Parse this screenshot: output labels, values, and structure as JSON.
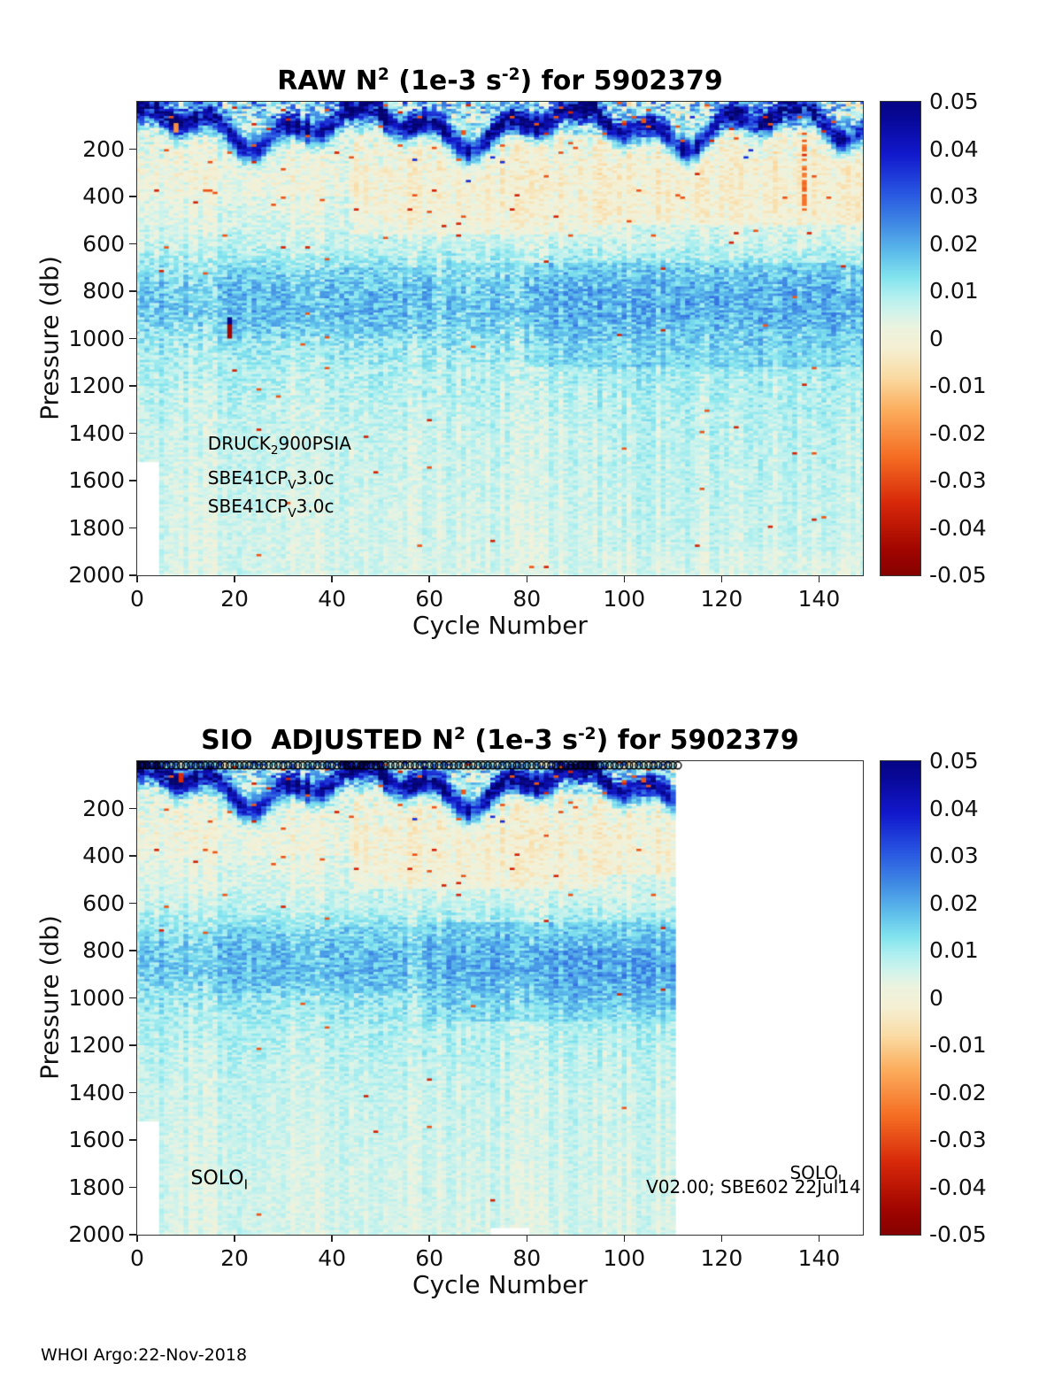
{
  "page": {
    "footer": "WHOI Argo:22-Nov-2018",
    "background": "#ffffff"
  },
  "colormap": {
    "stops": [
      [
        -0.055,
        110,
        0,
        0
      ],
      [
        -0.045,
        160,
        5,
        0
      ],
      [
        -0.035,
        215,
        40,
        10
      ],
      [
        -0.025,
        245,
        110,
        35
      ],
      [
        -0.015,
        252,
        175,
        95
      ],
      [
        -0.008,
        250,
        220,
        165
      ],
      [
        -0.002,
        245,
        240,
        212
      ],
      [
        0.002,
        238,
        243,
        222
      ],
      [
        0.005,
        216,
        244,
        234
      ],
      [
        0.009,
        178,
        240,
        240
      ],
      [
        0.013,
        130,
        228,
        238
      ],
      [
        0.018,
        95,
        190,
        235
      ],
      [
        0.024,
        65,
        140,
        228
      ],
      [
        0.031,
        40,
        85,
        225
      ],
      [
        0.039,
        18,
        25,
        205
      ],
      [
        0.047,
        8,
        8,
        150
      ],
      [
        0.055,
        3,
        3,
        110
      ]
    ]
  },
  "chart_data": [
    {
      "type": "heatmap",
      "title_parts": [
        {
          "t": "RAW N"
        },
        {
          "sup": "2"
        },
        {
          "t": " (1e-3 s"
        },
        {
          "sup": "-2"
        },
        {
          "t": ") for 5902379"
        }
      ],
      "xlabel": "Cycle Number",
      "ylabel": "Pressure (db)",
      "x_range": [
        0,
        149
      ],
      "y_range": [
        0,
        2000
      ],
      "x_ticks": [
        0,
        20,
        40,
        60,
        80,
        100,
        120,
        140
      ],
      "y_ticks": [
        200,
        400,
        600,
        800,
        1000,
        1200,
        1400,
        1600,
        1800,
        2000
      ],
      "value_range": [
        -0.05,
        0.05
      ],
      "colorbar_ticks": [
        "0.05",
        "0.04",
        "0.03",
        "0.02",
        "0.01",
        "0",
        "-0.01",
        "-0.02",
        "-0.03",
        "-0.04",
        "-0.05"
      ],
      "annotations": [
        {
          "c": 14.5,
          "p": 1450,
          "size": 20,
          "parts": [
            {
              "t": "DRUCK"
            },
            {
              "sub": "2"
            },
            {
              "t": "900PSIA"
            }
          ]
        },
        {
          "c": 14.5,
          "p": 1595,
          "size": 20,
          "parts": [
            {
              "t": "SBE41CP"
            },
            {
              "sub": "V"
            },
            {
              "t": "3.0c"
            }
          ]
        },
        {
          "c": 14.5,
          "p": 1715,
          "size": 20,
          "parts": [
            {
              "t": "SBE41CP"
            },
            {
              "sub": "V"
            },
            {
              "t": "3.0c"
            }
          ]
        }
      ],
      "field": {
        "seed": 101,
        "c_min": 0,
        "c_max": 149,
        "rows": 200,
        "base_profile": [
          [
            0,
            0.012
          ],
          [
            40,
            0.01
          ],
          [
            120,
            0.006
          ],
          [
            200,
            0.0045
          ],
          [
            300,
            0.003
          ],
          [
            450,
            0.003
          ],
          [
            600,
            0.006
          ],
          [
            700,
            0.011
          ],
          [
            800,
            0.015
          ],
          [
            900,
            0.015
          ],
          [
            1000,
            0.011
          ],
          [
            1150,
            0.008
          ],
          [
            1400,
            0.006
          ],
          [
            1700,
            0.005
          ],
          [
            2000,
            0.0045
          ]
        ],
        "noise_profile": [
          [
            0,
            0.02
          ],
          [
            60,
            0.015
          ],
          [
            150,
            0.008
          ],
          [
            300,
            0.005
          ],
          [
            600,
            0.0045
          ],
          [
            750,
            0.007
          ],
          [
            950,
            0.007
          ],
          [
            1100,
            0.005
          ],
          [
            1500,
            0.0035
          ],
          [
            2000,
            0.003
          ]
        ],
        "speck_profile": [
          [
            0,
            0.03
          ],
          [
            80,
            0.02
          ],
          [
            200,
            0.012
          ],
          [
            400,
            0.008
          ],
          [
            600,
            0.003
          ],
          [
            2000,
            0.0015
          ]
        ],
        "speck_neg_frac": 0.6,
        "col_noise": 0.0025,
        "streak": {
          "base": 100,
          "a1": 65,
          "p1": 6.8,
          "ph1": 4.14,
          "a2": 45,
          "p2": 2.4,
          "ph2": 4.5,
          "amp": 0.042,
          "sigma": 36
        },
        "patches": [
          {
            "c": [
              45,
              95
            ],
            "p": [
              140,
              560
            ],
            "dv": -0.0045
          },
          {
            "c": [
              95,
              149
            ],
            "p": [
              120,
              520
            ],
            "dv": -0.005
          },
          {
            "c": [
              0,
              45
            ],
            "p": [
              140,
              400
            ],
            "dv": -0.002
          },
          {
            "c": [
              80,
              149
            ],
            "p": [
              680,
              1120
            ],
            "dv": 0.004
          },
          {
            "c": [
              18,
              60
            ],
            "p": [
              700,
              1000
            ],
            "dv": 0.002
          },
          {
            "c": [
              95,
              149
            ],
            "p": [
              1100,
              1900
            ],
            "dv": 0.0015
          }
        ],
        "vstreaks": [
          {
            "c": 137,
            "w": 0.7,
            "p": [
              110,
              470
            ],
            "v": -0.028,
            "prob": 0.55
          }
        ],
        "specks": [
          {
            "c": 19,
            "p": [
              935,
              995
            ],
            "v": -0.045
          },
          {
            "c": 19,
            "p": [
              915,
              935
            ],
            "v": 0.05
          },
          {
            "c": 8,
            "p": [
              90,
              130
            ],
            "v": -0.02
          }
        ],
        "missing": [
          {
            "c": [
              0,
              4.5
            ],
            "p": [
              1520,
              2000
            ]
          }
        ]
      },
      "markers": null
    },
    {
      "type": "heatmap",
      "title_parts": [
        {
          "t": "SIO  ADJUSTED N"
        },
        {
          "sup": "2"
        },
        {
          "t": " (1e-3 s"
        },
        {
          "sup": "-2"
        },
        {
          "t": ") for 5902379"
        }
      ],
      "xlabel": "Cycle Number",
      "ylabel": "Pressure (db)",
      "x_range": [
        0,
        149
      ],
      "y_range": [
        0,
        2000
      ],
      "x_ticks": [
        0,
        20,
        40,
        60,
        80,
        100,
        120,
        140
      ],
      "y_ticks": [
        200,
        400,
        600,
        800,
        1000,
        1200,
        1400,
        1600,
        1800,
        2000
      ],
      "value_range": [
        -0.05,
        0.05
      ],
      "colorbar_ticks": [
        "0.05",
        "0.04",
        "0.03",
        "0.02",
        "0.01",
        "0",
        "-0.01",
        "-0.02",
        "-0.03",
        "-0.04",
        "-0.05"
      ],
      "annotations": [
        {
          "c": 11,
          "p": 1775,
          "size": 22,
          "parts": [
            {
              "t": "SOLO"
            },
            {
              "sub": "I"
            }
          ]
        },
        {
          "c": 134,
          "p": 1745,
          "size": 20,
          "parts": [
            {
              "t": "SOLO"
            },
            {
              "sub": "I"
            }
          ]
        },
        {
          "c": 104.5,
          "p": 1805,
          "size": 20,
          "parts": [
            {
              "t": "V02.00; SBE602 22Jul14"
            }
          ]
        }
      ],
      "field": {
        "seed": 101,
        "c_min": 0,
        "c_max": 110,
        "rows": 200,
        "base_profile": [
          [
            0,
            0.012
          ],
          [
            40,
            0.01
          ],
          [
            120,
            0.006
          ],
          [
            200,
            0.0045
          ],
          [
            300,
            0.003
          ],
          [
            450,
            0.003
          ],
          [
            600,
            0.006
          ],
          [
            700,
            0.011
          ],
          [
            800,
            0.015
          ],
          [
            900,
            0.015
          ],
          [
            1000,
            0.011
          ],
          [
            1150,
            0.008
          ],
          [
            1400,
            0.006
          ],
          [
            1700,
            0.005
          ],
          [
            2000,
            0.0045
          ]
        ],
        "noise_profile": [
          [
            0,
            0.02
          ],
          [
            60,
            0.015
          ],
          [
            150,
            0.008
          ],
          [
            300,
            0.005
          ],
          [
            600,
            0.004
          ],
          [
            750,
            0.0065
          ],
          [
            950,
            0.0065
          ],
          [
            1100,
            0.0045
          ],
          [
            1500,
            0.003
          ],
          [
            2000,
            0.0028
          ]
        ],
        "speck_profile": [
          [
            0,
            0.03
          ],
          [
            80,
            0.02
          ],
          [
            200,
            0.012
          ],
          [
            400,
            0.007
          ],
          [
            600,
            0.0025
          ],
          [
            2000,
            0.0012
          ]
        ],
        "speck_neg_frac": 0.6,
        "col_noise": 0.0025,
        "streak": {
          "base": 100,
          "a1": 65,
          "p1": 6.8,
          "ph1": 4.14,
          "a2": 45,
          "p2": 2.4,
          "ph2": 4.5,
          "amp": 0.042,
          "sigma": 36
        },
        "patches": [
          {
            "c": [
              45,
              95
            ],
            "p": [
              140,
              540
            ],
            "dv": -0.0045
          },
          {
            "c": [
              95,
              110
            ],
            "p": [
              120,
              480
            ],
            "dv": -0.004
          },
          {
            "c": [
              0,
              45
            ],
            "p": [
              140,
              400
            ],
            "dv": -0.002
          },
          {
            "c": [
              60,
              110
            ],
            "p": [
              680,
              1100
            ],
            "dv": 0.0035
          },
          {
            "c": [
              15,
              55
            ],
            "p": [
              700,
              980
            ],
            "dv": 0.002
          },
          {
            "c": [
              80,
              110
            ],
            "p": [
              800,
              1050
            ],
            "dv": 0.002
          }
        ],
        "vstreaks": [],
        "specks": [
          {
            "c": 9,
            "p": [
              55,
              85
            ],
            "v": -0.035
          }
        ],
        "missing": [
          {
            "c": [
              0,
              4.5
            ],
            "p": [
              1520,
              2000
            ]
          },
          {
            "c": [
              73,
              80
            ],
            "p": [
              1975,
              2000
            ]
          }
        ]
      },
      "markers": {
        "p": 18,
        "c": [
          0,
          111
        ],
        "r": 4
      }
    }
  ]
}
